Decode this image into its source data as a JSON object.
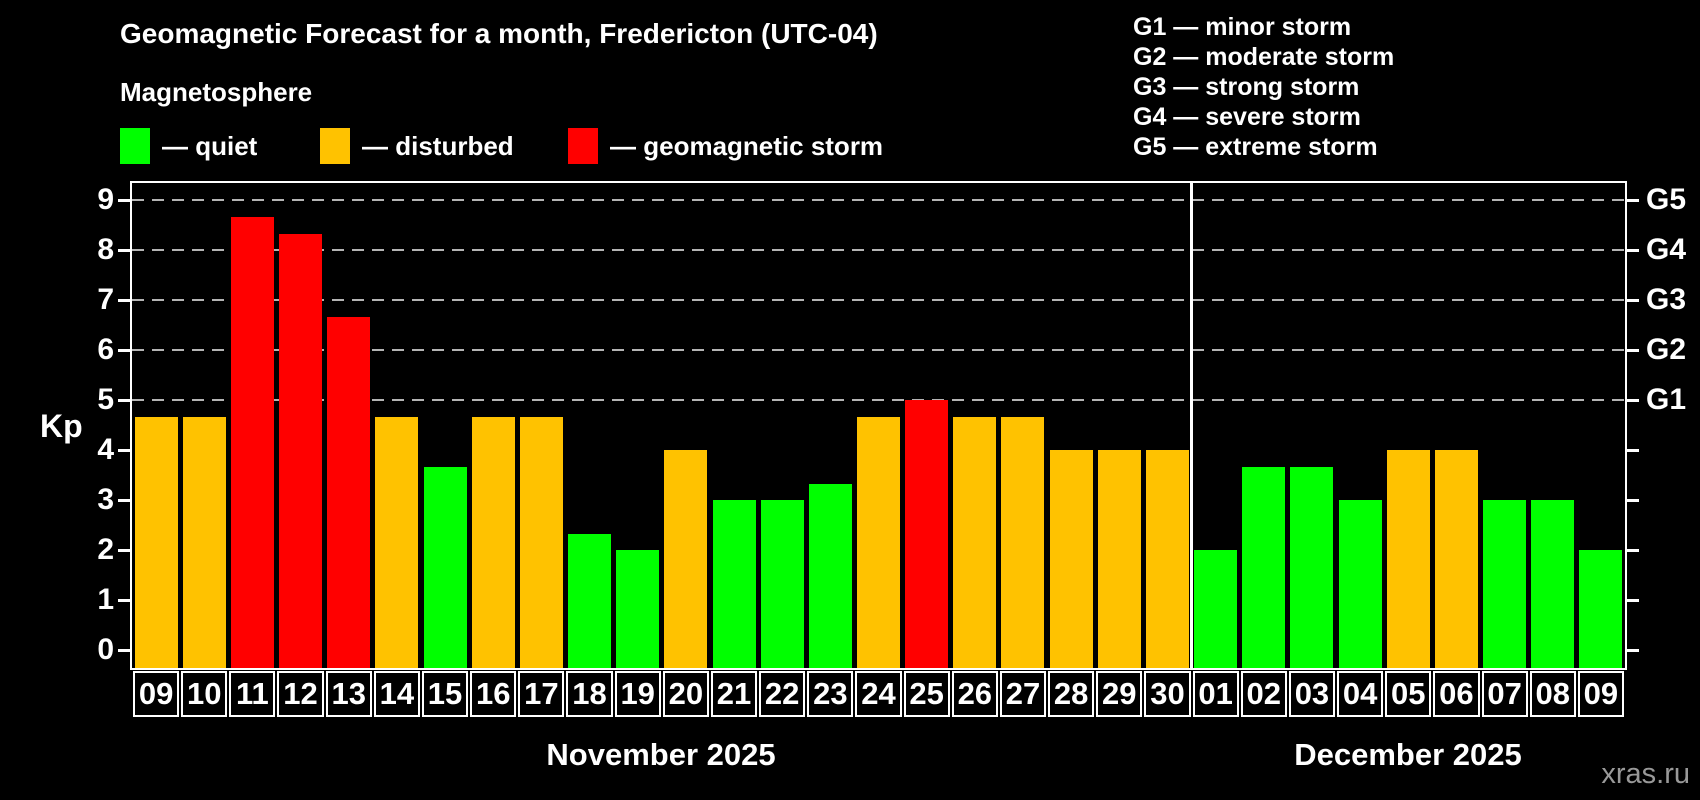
{
  "header": {
    "title": "Geomagnetic Forecast for a month, Fredericton (UTC-04)",
    "subtitle": "Magnetosphere"
  },
  "legend": {
    "items": [
      {
        "key": "quiet",
        "label": "— quiet"
      },
      {
        "key": "disturbed",
        "label": "— disturbed"
      },
      {
        "key": "storm",
        "label": "— geomagnetic storm"
      }
    ]
  },
  "g_legend": [
    "G1 — minor storm",
    "G2 — moderate storm",
    "G3 — strong storm",
    "G4 — severe storm",
    "G5 — extreme storm"
  ],
  "axes": {
    "kp_label": "Kp",
    "left_ticks": [
      "0",
      "1",
      "2",
      "3",
      "4",
      "5",
      "6",
      "7",
      "8",
      "9"
    ]
  },
  "watermark": "xras.ru",
  "chart_data": {
    "type": "bar",
    "title": "Geomagnetic Forecast for a month, Fredericton (UTC-04)",
    "ylabel": "Kp",
    "ylim": [
      -0.36,
      9.34
    ],
    "grid_kp": [
      5,
      6,
      7,
      8,
      9
    ],
    "right_axis": [
      {
        "kp": 5,
        "label": "G1"
      },
      {
        "kp": 6,
        "label": "G2"
      },
      {
        "kp": 7,
        "label": "G3"
      },
      {
        "kp": 8,
        "label": "G4"
      },
      {
        "kp": 9,
        "label": "G5"
      }
    ],
    "colors": {
      "quiet": "#00ff00",
      "disturbed": "#ffc200",
      "storm": "#ff0000"
    },
    "months": [
      {
        "label": "November 2025",
        "days": [
          {
            "date": "09",
            "kp": 4.67,
            "level": "disturbed"
          },
          {
            "date": "10",
            "kp": 4.67,
            "level": "disturbed"
          },
          {
            "date": "11",
            "kp": 8.67,
            "level": "storm"
          },
          {
            "date": "12",
            "kp": 8.33,
            "level": "storm"
          },
          {
            "date": "13",
            "kp": 6.67,
            "level": "storm"
          },
          {
            "date": "14",
            "kp": 4.67,
            "level": "disturbed"
          },
          {
            "date": "15",
            "kp": 3.67,
            "level": "quiet"
          },
          {
            "date": "16",
            "kp": 4.67,
            "level": "disturbed"
          },
          {
            "date": "17",
            "kp": 4.67,
            "level": "disturbed"
          },
          {
            "date": "18",
            "kp": 2.33,
            "level": "quiet"
          },
          {
            "date": "19",
            "kp": 2.0,
            "level": "quiet"
          },
          {
            "date": "20",
            "kp": 4.0,
            "level": "disturbed"
          },
          {
            "date": "21",
            "kp": 3.0,
            "level": "quiet"
          },
          {
            "date": "22",
            "kp": 3.0,
            "level": "quiet"
          },
          {
            "date": "23",
            "kp": 3.33,
            "level": "quiet"
          },
          {
            "date": "24",
            "kp": 4.67,
            "level": "disturbed"
          },
          {
            "date": "25",
            "kp": 5.0,
            "level": "storm"
          },
          {
            "date": "26",
            "kp": 4.67,
            "level": "disturbed"
          },
          {
            "date": "27",
            "kp": 4.67,
            "level": "disturbed"
          },
          {
            "date": "28",
            "kp": 4.0,
            "level": "disturbed"
          },
          {
            "date": "29",
            "kp": 4.0,
            "level": "disturbed"
          },
          {
            "date": "30",
            "kp": 4.0,
            "level": "disturbed"
          }
        ]
      },
      {
        "label": "December 2025",
        "days": [
          {
            "date": "01",
            "kp": 2.0,
            "level": "quiet"
          },
          {
            "date": "02",
            "kp": 3.67,
            "level": "quiet"
          },
          {
            "date": "03",
            "kp": 3.67,
            "level": "quiet"
          },
          {
            "date": "04",
            "kp": 3.0,
            "level": "quiet"
          },
          {
            "date": "05",
            "kp": 4.0,
            "level": "disturbed"
          },
          {
            "date": "06",
            "kp": 4.0,
            "level": "disturbed"
          },
          {
            "date": "07",
            "kp": 3.0,
            "level": "quiet"
          },
          {
            "date": "08",
            "kp": 3.0,
            "level": "quiet"
          },
          {
            "date": "09",
            "kp": 2.0,
            "level": "quiet"
          }
        ]
      }
    ]
  }
}
